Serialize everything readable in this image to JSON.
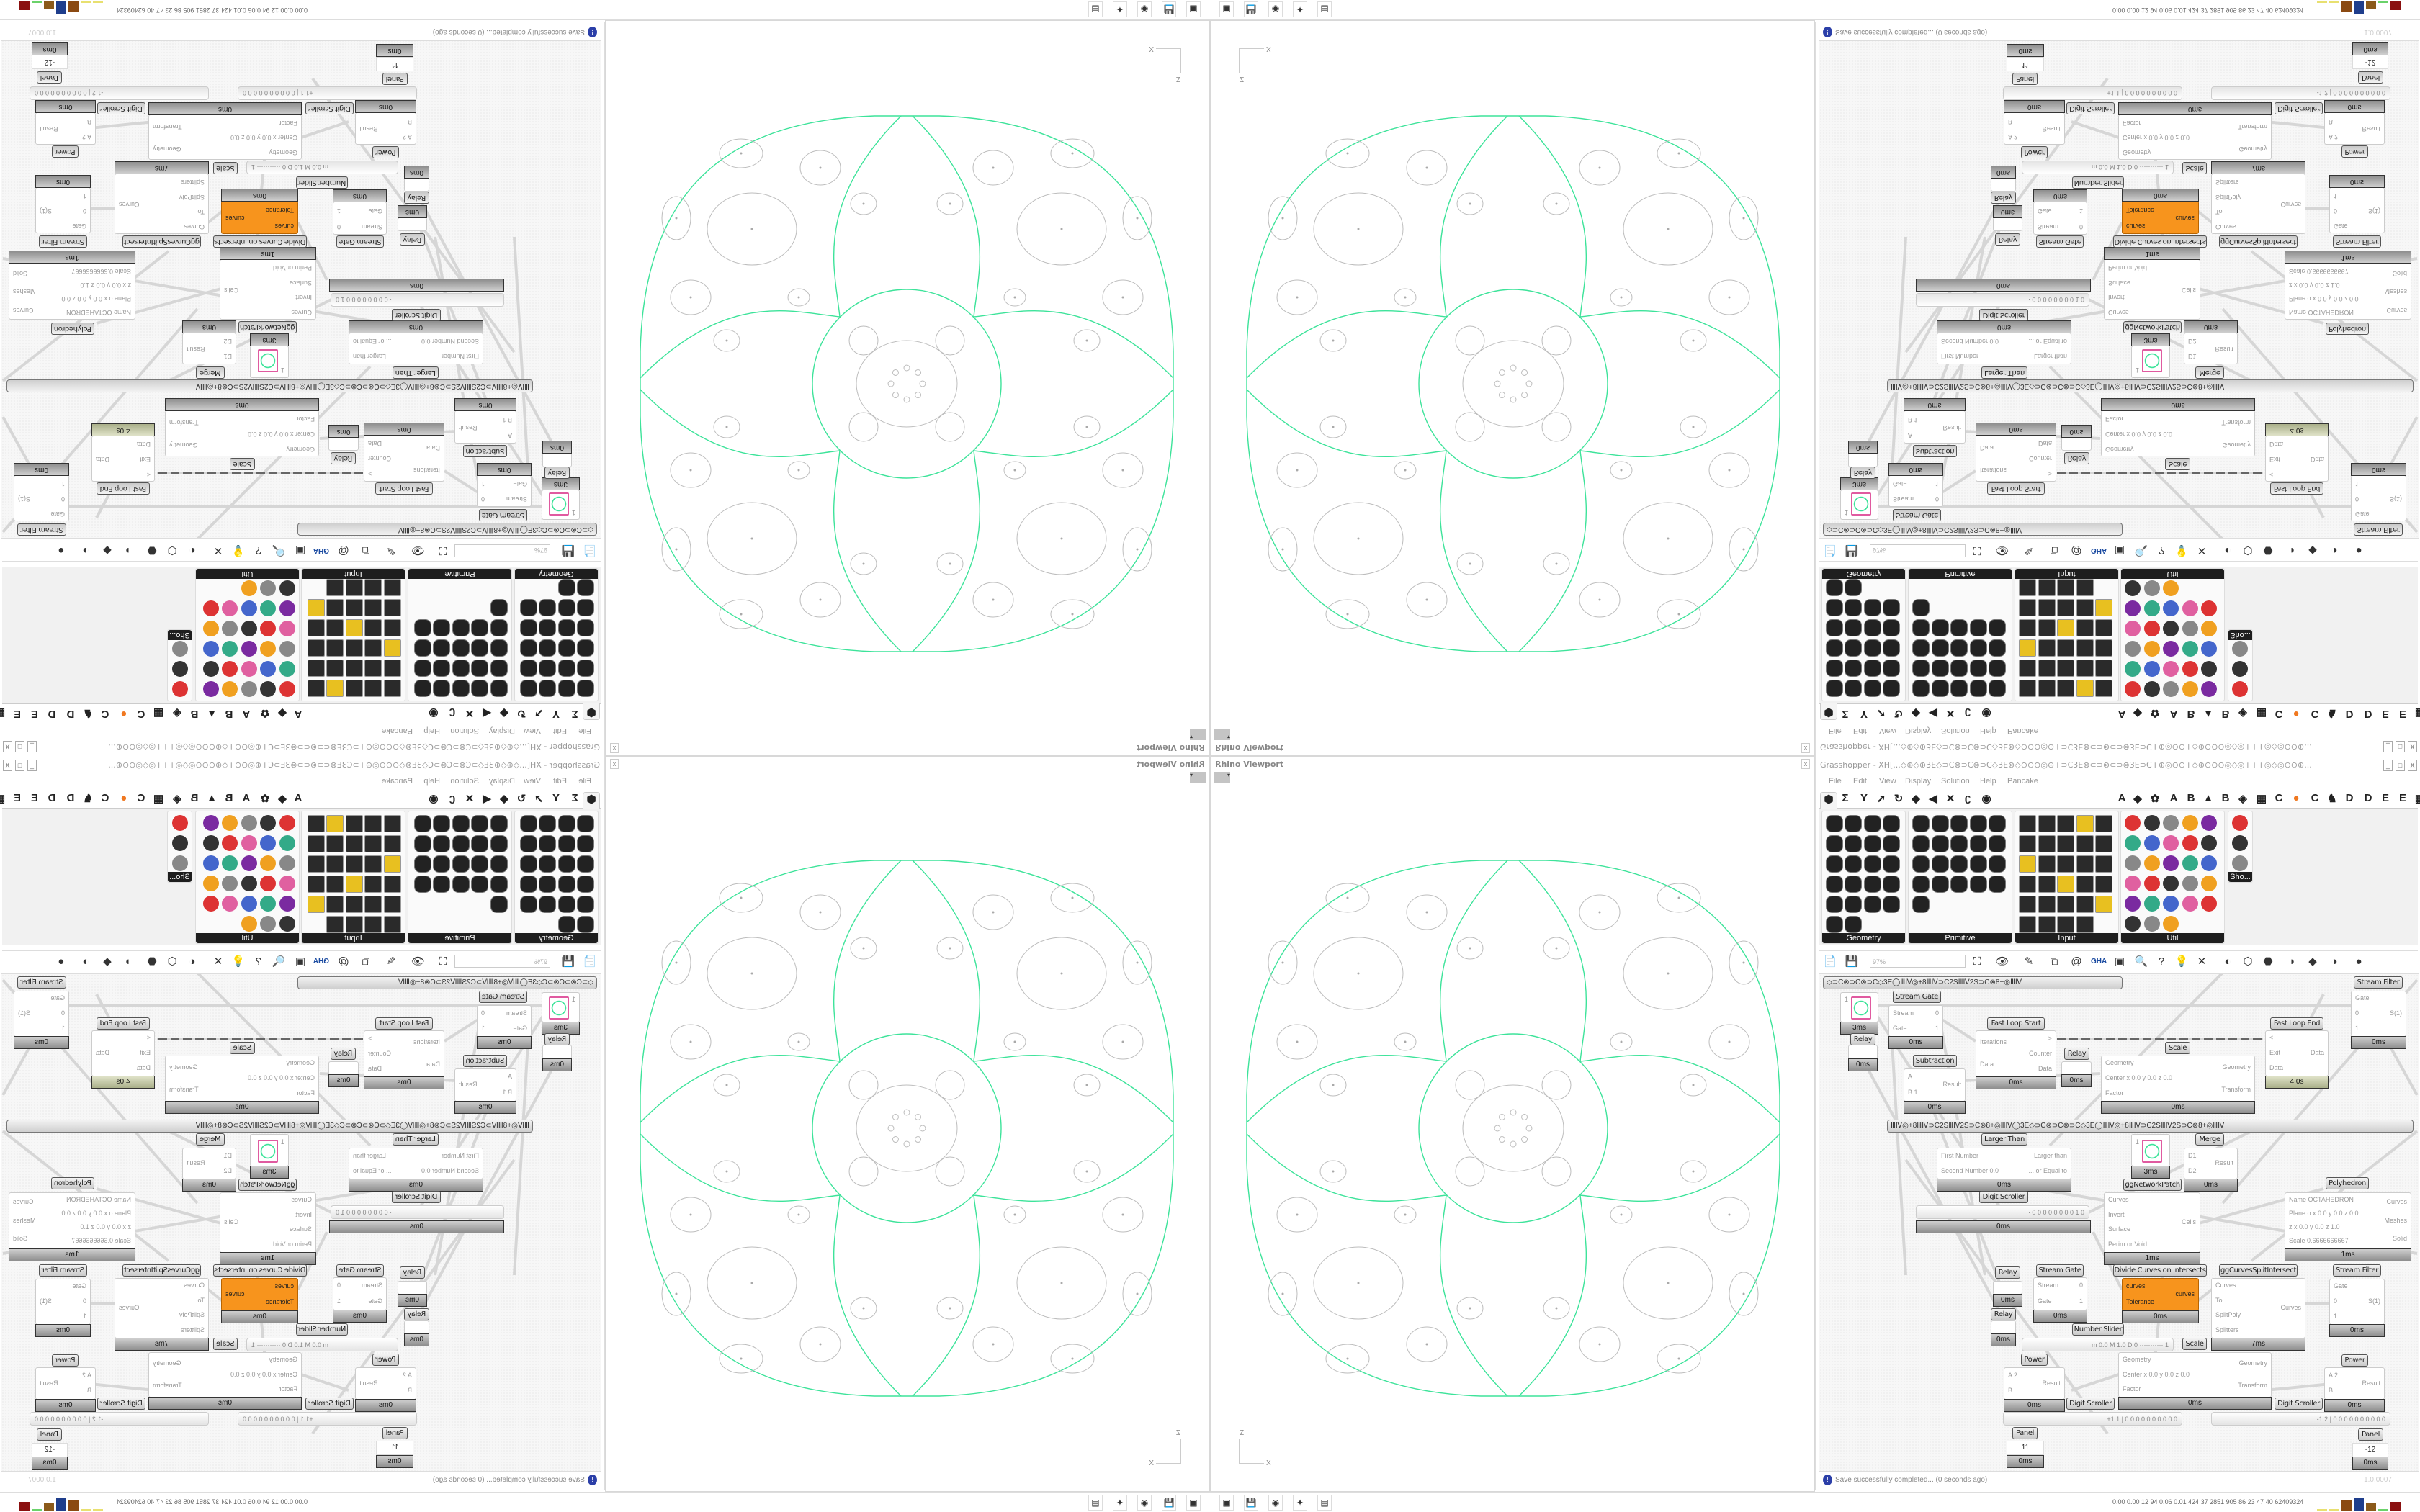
{
  "rhino": {
    "title": "Rhino Viewport",
    "close_label": "x",
    "axis_z": "Z",
    "axis_x": "X",
    "curve_color": "#3de39a",
    "cell_color": "#bdbdbd"
  },
  "gh": {
    "title": "Grasshopper - XH[...◇⊕◇⊕3E◇⊃C⊗⊃C⊗⊃C◇3E⊗◇⊖⊖⊖◎⊕+⊃C3E⊗⊂⊃⊗⊂⊃⊗3E⊃C+⊕◎⊖⊖+◇⊕⊖⊖⊖◎◇◎+++◎◇◎⊖⊖⊕...",
    "window_buttons": [
      "_",
      "□",
      "X"
    ],
    "menu": [
      "File",
      "Edit",
      "View",
      "Display",
      "Solution",
      "Help",
      "Pancake"
    ],
    "ribbon_tabs": [
      "⬢",
      "Σ",
      "Y",
      "➚",
      "↻",
      "◆",
      "◀",
      "✕",
      "ʗ",
      "◉",
      "A",
      "◆",
      "✿",
      "A",
      "B",
      "▲",
      "B",
      "◈",
      "▦",
      "C",
      "●",
      "C",
      "♞",
      "D",
      "D",
      "E",
      "E",
      "▦"
    ],
    "component_panels": [
      "Geometry",
      "Primitive",
      "Input",
      "Util",
      "Sho..."
    ],
    "toolbar_icons": [
      "📄",
      "💾",
      "⛶",
      "👁",
      "✎",
      "⧉",
      "@",
      "GHA",
      "▣",
      "🔍",
      "?",
      "💡",
      "✕",
      "◐",
      "⬡",
      "⬣",
      "◗",
      "◆",
      "◑",
      "●"
    ],
    "zoom_value": "97%",
    "group_bar_1": "◇⊃C⊗⊃C⊗⊃C◇3E◯ⅢⅣ◎+8ⅢⅣ⊃C2SⅢⅣ2S⊃C⊗8+◎ⅢⅣ",
    "group_bar_2": "ⅢⅣ◎+8ⅢⅣ⊃C2SⅢⅣ2S⊃C⊗8+◎ⅢⅣ◯3E◇⊃C⊗⊃C⊗⊃C◇3E◯ⅢⅣ◎+8ⅢⅣ⊃C2SⅢⅣ2S⊃C⊗8+◎ⅢⅣ",
    "nodes": [
      {
        "caption": "",
        "inputs": [
          "1",
          ""
        ],
        "outputs": [
          ""
        ],
        "time": "3ms",
        "swatch": true
      },
      {
        "caption": "Stream Gate",
        "inputs": [
          "Stream",
          "Gate"
        ],
        "outputs": [
          "0",
          "1"
        ],
        "time": "0ms"
      },
      {
        "caption": "Relay",
        "inputs": [],
        "outputs": [],
        "time": "0ms"
      },
      {
        "caption": "Fast Loop Start",
        "inputs": [
          "Iterations",
          "Data"
        ],
        "outputs": [
          ">",
          "Counter",
          "Data"
        ],
        "time": "0ms"
      },
      {
        "caption": "Relay",
        "inputs": [],
        "outputs": [],
        "time": "0ms"
      },
      {
        "caption": "Subtraction",
        "inputs": [
          "A",
          "B 1"
        ],
        "outputs": [
          "Result"
        ],
        "time": "0ms"
      },
      {
        "caption": "Scale",
        "inputs": [
          "Geometry",
          "Center x 0.0 y 0.0 z 0.0",
          "Factor"
        ],
        "outputs": [
          "Geometry",
          "Transform"
        ],
        "time": "0ms"
      },
      {
        "caption": "Fast Loop End",
        "inputs": [
          "<",
          "Exit",
          "Data"
        ],
        "outputs": [
          "Data"
        ],
        "time": "4.0s",
        "olive": true
      },
      {
        "caption": "Stream Filter",
        "inputs": [
          "Gate",
          "0",
          "1"
        ],
        "outputs": [
          "S(1)"
        ],
        "time": "0ms"
      },
      {
        "caption": "Larger Than",
        "inputs": [
          "First Number",
          "Second Number 0.0"
        ],
        "outputs": [
          "Larger than",
          "... or Equal to"
        ],
        "time": "0ms"
      },
      {
        "caption": "ggNetworkPatch",
        "inputs": [
          "1",
          ""
        ],
        "outputs": [
          ""
        ],
        "time": "3ms",
        "swatch": true
      },
      {
        "caption": "Merge",
        "inputs": [
          "D1",
          "D2"
        ],
        "outputs": [
          "Result"
        ],
        "time": "0ms"
      },
      {
        "caption": "Polyhedron",
        "inputs": [
          "Name  OCTAHEDRON",
          "Plane  o x 0.0 y 0.0 z 0.0",
          "z x 0.0 y 0.0 z 1.0",
          "Scale  0.6666666667"
        ],
        "outputs": [
          "Curves",
          "Meshes",
          "Solid"
        ],
        "time": "1ms"
      },
      {
        "caption": "",
        "inputs": [
          "Curves",
          "Invert",
          "Surface",
          "Perim or Void"
        ],
        "outputs": [
          "Cells"
        ],
        "time": "1ms"
      },
      {
        "caption": "Relay",
        "inputs": [],
        "outputs": [],
        "time": "0ms"
      },
      {
        "caption": "Stream Gate",
        "inputs": [
          "Stream",
          "Gate"
        ],
        "outputs": [
          "0",
          "1"
        ],
        "time": "0ms"
      },
      {
        "caption": "Divide Curves on Intersects",
        "inputs": [
          "curves",
          "Tolerance"
        ],
        "outputs": [
          "curves"
        ],
        "time": "0ms",
        "orange": true
      },
      {
        "caption": "ggCurvesSplitIntersect",
        "inputs": [
          "Curves",
          "Tol",
          "SplitPoly",
          "Splitters"
        ],
        "outputs": [
          "Curves"
        ],
        "time": "7ms"
      },
      {
        "caption": "Stream Filter",
        "inputs": [
          "Gate",
          "0",
          "1"
        ],
        "outputs": [
          "S(1)"
        ],
        "time": "0ms"
      },
      {
        "caption": "Relay",
        "inputs": [],
        "outputs": [],
        "time": "0ms"
      },
      {
        "caption": "Scale",
        "inputs": [
          "Geometry",
          "Center x 0.0 y 0.0 z 0.0",
          "Factor"
        ],
        "outputs": [
          "Geometry",
          "Transform"
        ],
        "time": "0ms"
      },
      {
        "caption": "Power",
        "inputs": [
          "A 2",
          "B"
        ],
        "outputs": [
          "Result"
        ],
        "time": "0ms"
      },
      {
        "caption": "Power",
        "inputs": [
          "A 2",
          "B"
        ],
        "outputs": [
          "Result"
        ],
        "time": "0ms"
      }
    ],
    "digit_scroller_top": {
      "caption": "Digit Scroller",
      "value": "· 0 0 0 0 0 0 0 0 1 0",
      "time": "0ms"
    },
    "number_slider": {
      "caption": "Number Slider",
      "value": "m 0.0  M 1.0  D 0 ···········  1"
    },
    "digit_scroller_left": {
      "caption": "Digit Scroller",
      "value": "+1 1 | 0 0 0 0 0 0 0 0 0 0"
    },
    "digit_scroller_right": {
      "caption": "Digit Scroller",
      "value": "-1 2 | 0 0 0 0 0 0 0 0 0 0"
    },
    "panel_left": {
      "caption": "Panel",
      "value": "11",
      "time": "0ms"
    },
    "panel_right": {
      "caption": "Panel",
      "value": "-12",
      "time": "0ms"
    },
    "status_message": "Save successfully completed... (0 seconds ago)",
    "version": "1.0.0007"
  },
  "taskbar": {
    "icons": [
      "▣",
      "💾",
      "◉",
      "✦",
      "▤"
    ],
    "tray_text": "0.00 0.00  12  94  0.06 0.01  424  37  2851 905  86  23  47  40  62409324",
    "tray_bar_colors": [
      "#e8e070",
      "#e8e070",
      "#8b4a12",
      "#1f3e8c",
      "#8b5a1a",
      "#6ad26a",
      "#8a1010"
    ]
  }
}
